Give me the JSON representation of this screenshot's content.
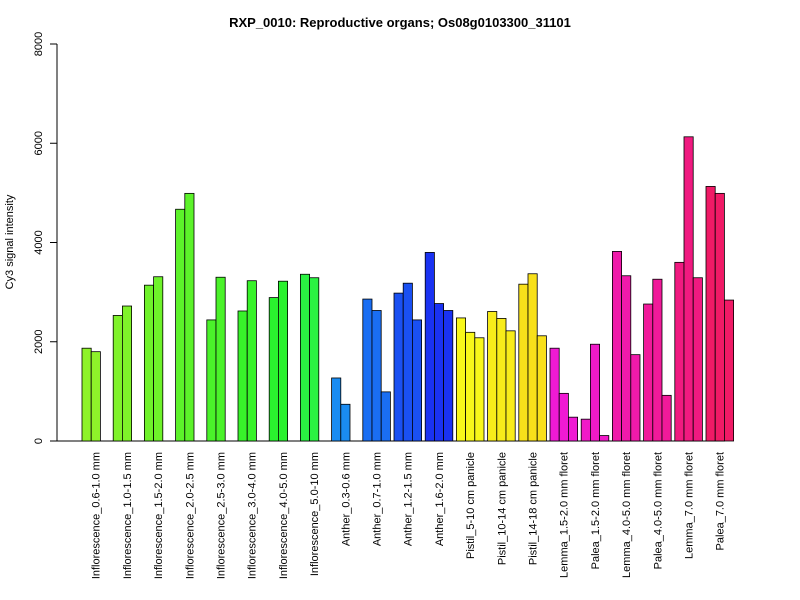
{
  "chart_data": {
    "type": "bar",
    "title": "RXP_0010: Reproductive organs; Os08g0103300_31101",
    "ylabel": "Cy3 signal intensity",
    "xlabel": "",
    "ylim": [
      0,
      8000
    ],
    "yticks": [
      0,
      2000,
      4000,
      6000,
      8000
    ],
    "grid": false,
    "groups": [
      {
        "label": "Inflorescence_0.6-1.0 mm",
        "color": "#8ef22a",
        "values": [
          1870,
          1800
        ]
      },
      {
        "label": "Inflorescence_1.0-1.5 mm",
        "color": "#7ff22a",
        "values": [
          2530,
          2720
        ]
      },
      {
        "label": "Inflorescence_1.5-2.0 mm",
        "color": "#6ef22a",
        "values": [
          3140,
          3310
        ]
      },
      {
        "label": "Inflorescence_2.0-2.5 mm",
        "color": "#5cf22a",
        "values": [
          4670,
          4990
        ]
      },
      {
        "label": "Inflorescence_2.5-3.0 mm",
        "color": "#4af22a",
        "values": [
          2440,
          3300
        ]
      },
      {
        "label": "Inflorescence_3.0-4.0 mm",
        "color": "#38f22a",
        "values": [
          2620,
          3230
        ]
      },
      {
        "label": "Inflorescence_4.0-5.0 mm",
        "color": "#2af22e",
        "values": [
          2890,
          3220
        ]
      },
      {
        "label": "Inflorescence_5.0-10 mm",
        "color": "#2af242",
        "values": [
          3360,
          3290
        ]
      },
      {
        "label": "Anther_0.3-0.6 mm",
        "color": "#1a8cf2",
        "values": [
          1270,
          740
        ]
      },
      {
        "label": "Anther_0.7-1.0 mm",
        "color": "#1a6ef2",
        "values": [
          2860,
          2630,
          990
        ]
      },
      {
        "label": "Anther_1.2-1.5 mm",
        "color": "#1a50f2",
        "values": [
          2980,
          3180,
          2440
        ]
      },
      {
        "label": "Anther_1.6-2.0 mm",
        "color": "#1a32f2",
        "values": [
          3800,
          2770,
          2630
        ]
      },
      {
        "label": "Pistil_5-10 cm panicle",
        "color": "#f8f81a",
        "values": [
          2480,
          2190,
          2080
        ]
      },
      {
        "label": "Pistil_10-14 cm panicle",
        "color": "#f8ec1a",
        "values": [
          2610,
          2470,
          2220
        ]
      },
      {
        "label": "Pistil_14-18 cm panicle",
        "color": "#f8e01a",
        "values": [
          3160,
          3370,
          2120
        ]
      },
      {
        "label": "Lemma_1.5-2.0 mm floret",
        "color": "#f01ad4",
        "values": [
          1870,
          960,
          480
        ]
      },
      {
        "label": "Palea_1.5-2.0 mm floret",
        "color": "#f01ac8",
        "values": [
          440,
          1950,
          110
        ]
      },
      {
        "label": "Lemma_4.0-5.0 mm floret",
        "color": "#f01aaa",
        "values": [
          3820,
          3330,
          1740
        ]
      },
      {
        "label": "Palea_4.0-5.0 mm floret",
        "color": "#f01a9a",
        "values": [
          2760,
          3260,
          920
        ]
      },
      {
        "label": "Lemma_7.0 mm floret",
        "color": "#f01a80",
        "values": [
          3600,
          6130,
          3290
        ]
      },
      {
        "label": "Palea_7.0 mm floret",
        "color": "#f01a66",
        "values": [
          5130,
          4990,
          2840
        ]
      }
    ]
  }
}
